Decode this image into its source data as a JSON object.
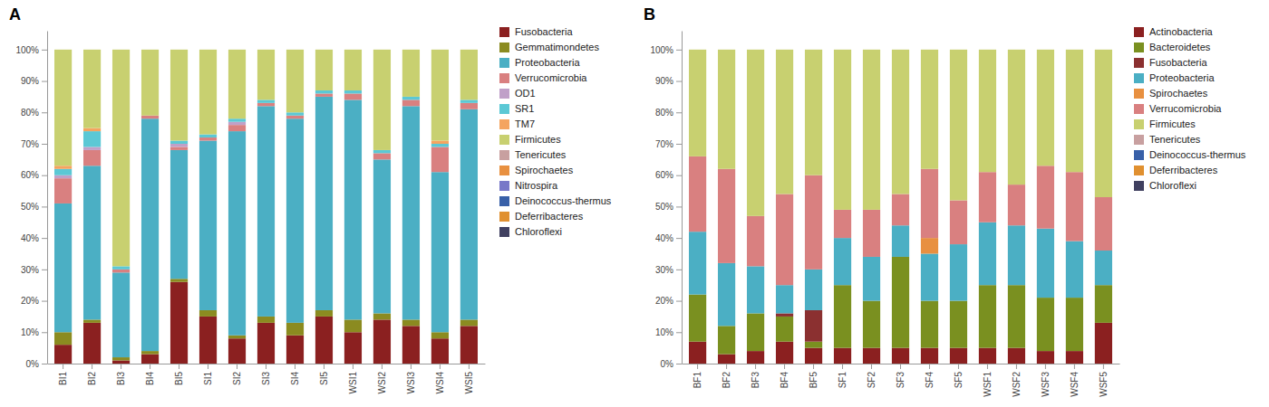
{
  "chart_data": [
    {
      "type": "bar",
      "title": "A",
      "stacked": true,
      "grid": false,
      "legend": "right",
      "categories": [
        "BI1",
        "BI2",
        "BI3",
        "BI4",
        "BI5",
        "SI1",
        "SI2",
        "SI3",
        "SI4",
        "SI5",
        "WSI1",
        "WSI2",
        "WSI3",
        "WSI4",
        "WSI5"
      ],
      "ylim": [
        0,
        106
      ],
      "yticks": [
        {
          "value": 0,
          "label": "0%"
        },
        {
          "value": 10,
          "label": "10%"
        },
        {
          "value": 20,
          "label": "20%"
        },
        {
          "value": 30,
          "label": "30%"
        },
        {
          "value": 40,
          "label": "40%"
        },
        {
          "value": 50,
          "label": "50%"
        },
        {
          "value": 60,
          "label": "60%"
        },
        {
          "value": 70,
          "label": "70%"
        },
        {
          "value": 80,
          "label": "80%"
        },
        {
          "value": 90,
          "label": "90%"
        },
        {
          "value": 100,
          "label": "100%"
        }
      ],
      "series": [
        {
          "name": "Fusobacteria",
          "color": "#8B2020",
          "values": [
            6,
            13,
            1,
            3,
            26,
            15,
            8,
            13,
            9,
            15,
            10,
            14,
            12,
            8,
            12
          ]
        },
        {
          "name": "Gemmatimondetes",
          "color": "#8B8B20",
          "values": [
            4,
            1,
            1,
            1,
            1,
            2,
            1,
            2,
            4,
            2,
            4,
            2,
            2,
            2,
            2
          ]
        },
        {
          "name": "Proteobacteria",
          "color": "#4BAFC4",
          "values": [
            41,
            49,
            27,
            74,
            41,
            54,
            65,
            67,
            65,
            68,
            70,
            49,
            68,
            51,
            67
          ]
        },
        {
          "name": "Verrucomicrobia",
          "color": "#D98080",
          "values": [
            8,
            5,
            1,
            1,
            1,
            1,
            2,
            1,
            1,
            1,
            2,
            2,
            2,
            8,
            2
          ]
        },
        {
          "name": "OD1",
          "color": "#C0A0C8",
          "values": [
            1,
            1,
            0,
            0,
            1,
            0,
            1,
            0,
            0,
            0,
            0,
            0,
            0,
            0,
            0
          ]
        },
        {
          "name": "SR1",
          "color": "#5BC8D5",
          "values": [
            2,
            5,
            1,
            0,
            1,
            1,
            1,
            1,
            1,
            1,
            1,
            1,
            1,
            1,
            1
          ]
        },
        {
          "name": "TM7",
          "color": "#F4A460",
          "values": [
            1,
            1,
            0,
            0,
            0,
            0,
            0,
            0,
            0,
            0,
            0,
            0,
            0,
            1,
            0
          ]
        },
        {
          "name": "Firmicutes",
          "color": "#C8D070",
          "values": [
            37,
            25,
            69,
            21,
            29,
            27,
            22,
            16,
            20,
            13,
            13,
            32,
            15,
            29,
            16
          ]
        },
        {
          "name": "Tenericutes",
          "color": "#C8A0A0",
          "values": [
            null,
            null,
            null,
            null,
            null,
            null,
            null,
            null,
            null,
            null,
            null,
            null,
            null,
            null,
            null
          ]
        },
        {
          "name": "Spirochaetes",
          "color": "#E89040",
          "values": [
            null,
            null,
            null,
            null,
            null,
            null,
            null,
            null,
            null,
            null,
            null,
            null,
            null,
            null,
            null
          ]
        },
        {
          "name": "Nitrospira",
          "color": "#7878C8",
          "values": [
            null,
            null,
            null,
            null,
            null,
            null,
            null,
            null,
            null,
            null,
            null,
            null,
            null,
            null,
            null
          ]
        },
        {
          "name": "Deinococcus-thermus",
          "color": "#3860A8",
          "values": [
            null,
            null,
            null,
            null,
            null,
            null,
            null,
            null,
            null,
            null,
            null,
            null,
            null,
            null,
            null
          ]
        },
        {
          "name": "Deferribacteres",
          "color": "#E09030",
          "values": [
            null,
            null,
            null,
            null,
            null,
            null,
            null,
            null,
            null,
            null,
            null,
            null,
            null,
            null,
            null
          ]
        },
        {
          "name": "Chloroflexi",
          "color": "#404060",
          "values": [
            null,
            null,
            null,
            null,
            null,
            null,
            null,
            null,
            null,
            null,
            null,
            null,
            null,
            null,
            null
          ]
        }
      ]
    },
    {
      "type": "bar",
      "title": "B",
      "stacked": true,
      "grid": false,
      "legend": "right",
      "categories": [
        "BF1",
        "BF2",
        "BF3",
        "BF4",
        "BF5",
        "SF1",
        "SF2",
        "SF3",
        "SF4",
        "SF5",
        "WSF1",
        "WSF2",
        "WSF3",
        "WSF4",
        "WSF5"
      ],
      "ylim": [
        0,
        106
      ],
      "yticks": [
        {
          "value": 0,
          "label": "0%"
        },
        {
          "value": 10,
          "label": "10%"
        },
        {
          "value": 20,
          "label": "20%"
        },
        {
          "value": 30,
          "label": "30%"
        },
        {
          "value": 40,
          "label": "40%"
        },
        {
          "value": 50,
          "label": "50%"
        },
        {
          "value": 60,
          "label": "60%"
        },
        {
          "value": 70,
          "label": "70%"
        },
        {
          "value": 80,
          "label": "80%"
        },
        {
          "value": 90,
          "label": "90%"
        },
        {
          "value": 100,
          "label": "100%"
        }
      ],
      "series": [
        {
          "name": "Actinobacteria",
          "color": "#8B2020",
          "values": [
            7,
            3,
            4,
            7,
            5,
            5,
            5,
            5,
            5,
            5,
            5,
            5,
            4,
            4,
            13
          ]
        },
        {
          "name": "Bacteroidetes",
          "color": "#7A9020",
          "values": [
            15,
            9,
            12,
            8,
            2,
            20,
            15,
            29,
            15,
            15,
            20,
            20,
            17,
            17,
            12
          ]
        },
        {
          "name": "Fusobacteria",
          "color": "#8B3030",
          "values": [
            0,
            0,
            0,
            1,
            10,
            0,
            0,
            0,
            0,
            0,
            0,
            0,
            0,
            0,
            0
          ]
        },
        {
          "name": "Proteobacteria",
          "color": "#4BAFC4",
          "values": [
            20,
            20,
            15,
            9,
            13,
            15,
            14,
            10,
            15,
            18,
            20,
            19,
            22,
            18,
            11
          ]
        },
        {
          "name": "Spirochaetes",
          "color": "#E89040",
          "values": [
            0,
            0,
            0,
            0,
            0,
            0,
            0,
            0,
            5,
            0,
            0,
            0,
            0,
            0,
            0
          ]
        },
        {
          "name": "Verrucomicrobia",
          "color": "#D98080",
          "values": [
            24,
            30,
            16,
            29,
            30,
            9,
            15,
            10,
            22,
            14,
            16,
            13,
            20,
            22,
            17
          ]
        },
        {
          "name": "Firmicutes",
          "color": "#C8D070",
          "values": [
            34,
            38,
            53,
            46,
            40,
            51,
            51,
            46,
            38,
            48,
            39,
            43,
            37,
            39,
            47
          ]
        },
        {
          "name": "Tenericutes",
          "color": "#C8A0A0",
          "values": [
            null,
            null,
            null,
            null,
            null,
            null,
            null,
            null,
            null,
            null,
            null,
            null,
            null,
            null,
            null
          ]
        },
        {
          "name": "Deinococcus-thermus",
          "color": "#3860A8",
          "values": [
            null,
            null,
            null,
            null,
            null,
            null,
            null,
            null,
            null,
            null,
            null,
            null,
            null,
            null,
            null
          ]
        },
        {
          "name": "Deferribacteres",
          "color": "#E09030",
          "values": [
            null,
            null,
            null,
            null,
            null,
            null,
            null,
            null,
            null,
            null,
            null,
            null,
            null,
            null,
            null
          ]
        },
        {
          "name": "Chloroflexi",
          "color": "#404060",
          "values": [
            null,
            null,
            null,
            null,
            null,
            null,
            null,
            null,
            null,
            null,
            null,
            null,
            null,
            null,
            null
          ]
        }
      ]
    }
  ]
}
